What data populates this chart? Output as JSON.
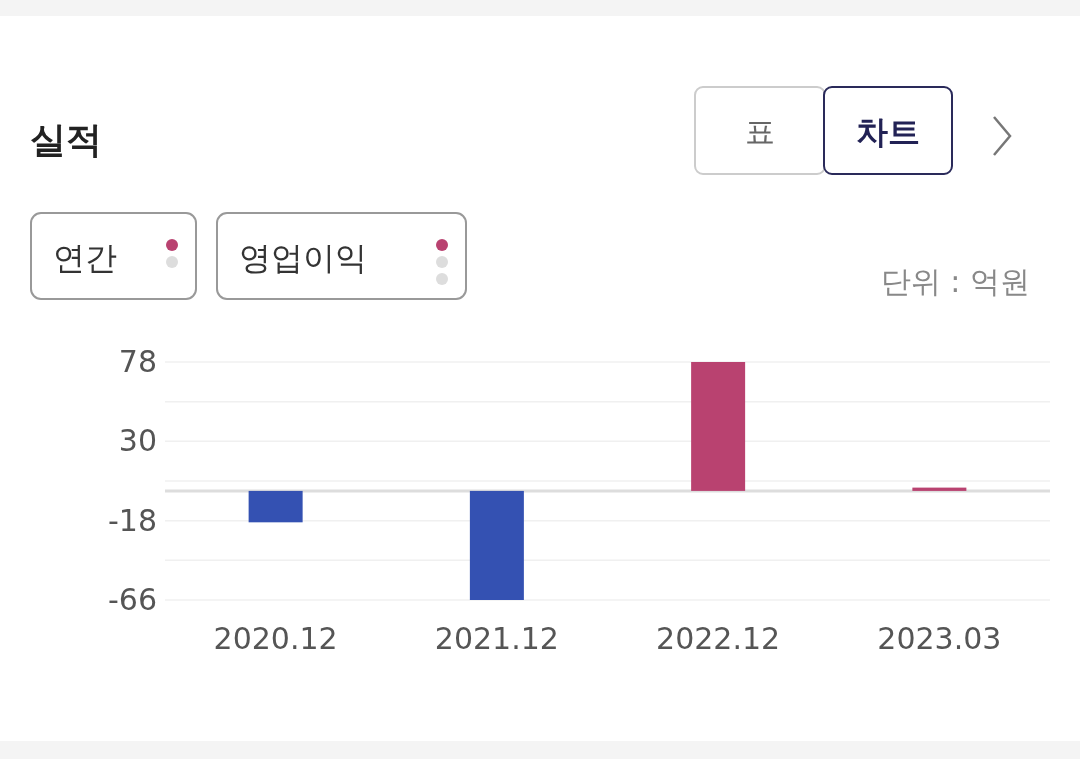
{
  "chart_data": {
    "type": "bar",
    "title": "실적",
    "categories": [
      "2020.12",
      "2021.12",
      "2022.12",
      "2023.03"
    ],
    "values": [
      -19,
      -66,
      78,
      2
    ],
    "colors": [
      "#3451b2",
      "#3451b2",
      "#b94270",
      "#b94270"
    ],
    "ylim": [
      -66,
      78
    ],
    "yticks": [
      -66,
      {
        "value": -42,
        "label": null
      },
      -18,
      {
        "value": 6,
        "label": null
      },
      30,
      {
        "value": 54,
        "label": null
      },
      78
    ],
    "grid": "y",
    "annotations": [
      "단위 : 억원",
      "표",
      "차트",
      "연간",
      "영업이익"
    ]
  }
}
